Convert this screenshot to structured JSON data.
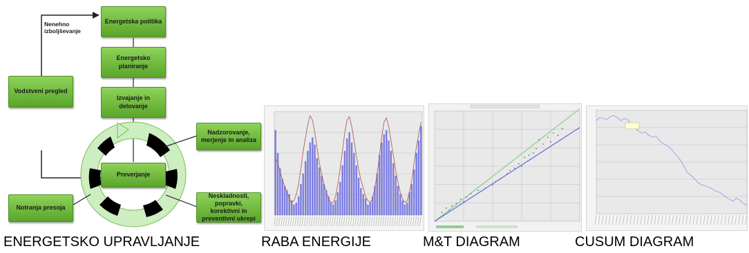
{
  "diagram": {
    "boxes": {
      "policy": "Energetska politika",
      "planning": "Energetsko planiranje",
      "implementation": "Izvajanje in delovanje",
      "checking": "Preverjanje",
      "review": "Vodstveni pregled",
      "monitoring": "Nadzorovanje, merjenje in analiza",
      "nonconformity": "Neskladnosti, popravki, korektivni in preventivni ukrepi",
      "audit": "Notranja presoja"
    },
    "continuous_improvement": "Nenehno izboljševanje",
    "colors": {
      "box_fill": "#6fbf3a",
      "box_border": "#4e8e24",
      "cycle_green": "#cdeec0",
      "cycle_black": "#000000"
    }
  },
  "captions": {
    "energy_management": "ENERGETSKO UPRAVLJANJE",
    "energy_use": "RABA ENERGIJE",
    "mt_diagram": "M&T DIAGRAM",
    "cusum_diagram": "CUSUM DIAGRAM"
  },
  "chart_data": [
    {
      "type": "bar",
      "name_ref": "energy_use",
      "values": [
        82,
        60,
        45,
        35,
        28,
        24,
        20,
        14,
        10,
        12,
        18,
        30,
        40,
        52,
        62,
        70,
        75,
        68,
        55,
        46,
        38,
        30,
        24,
        18,
        12,
        10,
        14,
        22,
        32,
        48,
        62,
        74,
        80,
        70,
        60,
        48,
        36,
        26,
        20,
        16,
        10,
        12,
        18,
        28,
        40,
        58,
        70,
        78,
        82,
        72,
        62,
        50,
        38,
        28,
        20,
        14,
        10,
        12,
        22,
        30,
        44,
        60,
        72,
        86
      ],
      "line": [
        55,
        50,
        42,
        34,
        28,
        22,
        16,
        12,
        14,
        20,
        30,
        45,
        62,
        75,
        88,
        96,
        92,
        80,
        65,
        50,
        40,
        30,
        22,
        16,
        12,
        12,
        18,
        30,
        45,
        62,
        80,
        92,
        95,
        86,
        72,
        58,
        44,
        34,
        26,
        18,
        14,
        12,
        16,
        26,
        40,
        58,
        76,
        90,
        94,
        86,
        72,
        58,
        44,
        32,
        22,
        16,
        12,
        14,
        22,
        34,
        50,
        66,
        78,
        90
      ],
      "series_colors": {
        "bars": "#7f80e6",
        "line": "#b06060"
      }
    },
    {
      "type": "scatter",
      "name_ref": "mt_diagram",
      "points": [
        [
          0.05,
          0.08
        ],
        [
          0.08,
          0.12
        ],
        [
          0.1,
          0.1
        ],
        [
          0.12,
          0.14
        ],
        [
          0.15,
          0.16
        ],
        [
          0.18,
          0.2
        ],
        [
          0.2,
          0.18
        ],
        [
          0.22,
          0.22
        ],
        [
          0.25,
          0.25
        ],
        [
          0.3,
          0.28
        ],
        [
          0.35,
          0.3
        ],
        [
          0.4,
          0.33
        ],
        [
          0.42,
          0.36
        ],
        [
          0.45,
          0.38
        ],
        [
          0.5,
          0.43
        ],
        [
          0.52,
          0.46
        ],
        [
          0.55,
          0.48
        ],
        [
          0.58,
          0.52
        ],
        [
          0.6,
          0.5
        ],
        [
          0.62,
          0.58
        ],
        [
          0.65,
          0.6
        ],
        [
          0.68,
          0.62
        ],
        [
          0.7,
          0.66
        ],
        [
          0.72,
          0.74
        ],
        [
          0.75,
          0.7
        ],
        [
          0.78,
          0.76
        ],
        [
          0.8,
          0.72
        ],
        [
          0.82,
          0.8
        ],
        [
          0.85,
          0.78
        ],
        [
          0.88,
          0.84
        ]
      ],
      "lines": [
        {
          "color": "#7fd27f",
          "from": [
            0.0,
            0.0
          ],
          "to": [
            1.0,
            1.02
          ]
        },
        {
          "color": "#6666dd",
          "from": [
            0.0,
            0.0
          ],
          "to": [
            1.0,
            0.85
          ]
        }
      ]
    },
    {
      "type": "line",
      "name_ref": "cusum_diagram",
      "values": [
        0.9,
        0.93,
        0.92,
        0.91,
        0.94,
        0.95,
        0.93,
        0.9,
        0.92,
        0.91,
        0.86,
        0.83,
        0.8,
        0.78,
        0.79,
        0.76,
        0.74,
        0.75,
        0.71,
        0.68,
        0.66,
        0.64,
        0.6,
        0.56,
        0.52,
        0.46,
        0.4,
        0.37,
        0.34,
        0.3,
        0.28,
        0.27,
        0.26,
        0.24,
        0.22,
        0.21,
        0.19,
        0.16,
        0.14,
        0.12,
        0.15,
        0.13,
        0.1,
        0.08
      ],
      "series_color": "#9a9ae8"
    }
  ]
}
